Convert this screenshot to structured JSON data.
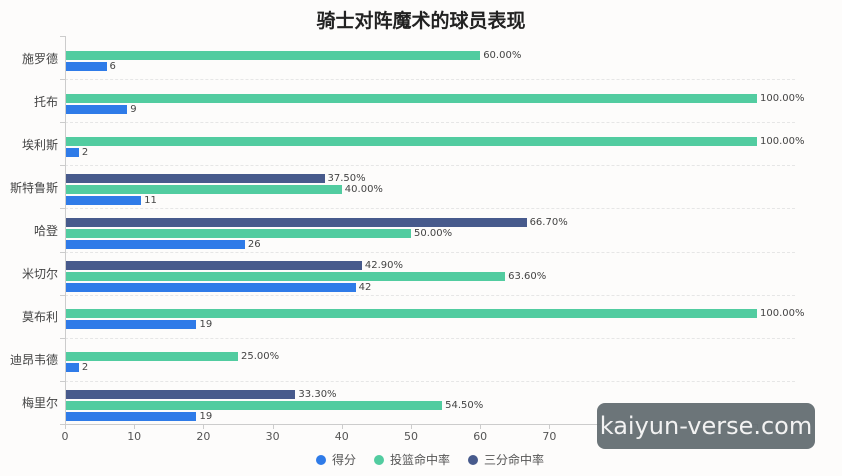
{
  "chart_data": {
    "type": "bar",
    "orientation": "horizontal",
    "title": "骑士对阵魔术的球员表现",
    "xlabel": "",
    "ylabel": "",
    "xlim": [
      0,
      100
    ],
    "x_ticks": [
      0,
      10,
      20,
      30,
      40,
      50,
      60,
      70,
      80,
      90,
      100
    ],
    "categories": [
      "施罗德",
      "托布",
      "埃利斯",
      "斯特鲁斯",
      "哈登",
      "米切尔",
      "莫布利",
      "迪昂韦德",
      "梅里尔"
    ],
    "series": [
      {
        "name": "得分",
        "color": "#2f7be8",
        "values": [
          6,
          9,
          2,
          11,
          26,
          42,
          19,
          2,
          19
        ],
        "labels": [
          "6",
          "9",
          "2",
          "11",
          "26",
          "42",
          "19",
          "2",
          "19"
        ]
      },
      {
        "name": "投篮命中率",
        "color": "#52cca0",
        "values": [
          60.0,
          100.0,
          100.0,
          40.0,
          50.0,
          63.6,
          100.0,
          25.0,
          54.5
        ],
        "labels": [
          "60.00%",
          "100.00%",
          "100.00%",
          "40.00%",
          "50.00%",
          "63.60%",
          "100.00%",
          "25.00%",
          "54.50%"
        ]
      },
      {
        "name": "三分命中率",
        "color": "#475a8c",
        "values": [
          null,
          null,
          null,
          37.5,
          66.7,
          42.9,
          null,
          null,
          33.3
        ],
        "labels": [
          "",
          "",
          "",
          "37.50%",
          "66.70%",
          "42.90%",
          "",
          "",
          "33.30%"
        ]
      }
    ],
    "legend_position": "bottom",
    "grid": true
  },
  "legend": [
    {
      "label": "得分",
      "color": "#2f7be8"
    },
    {
      "label": "投篮命中率",
      "color": "#52cca0"
    },
    {
      "label": "三分命中率",
      "color": "#475a8c"
    }
  ],
  "watermark": "kaiyun-verse.com"
}
